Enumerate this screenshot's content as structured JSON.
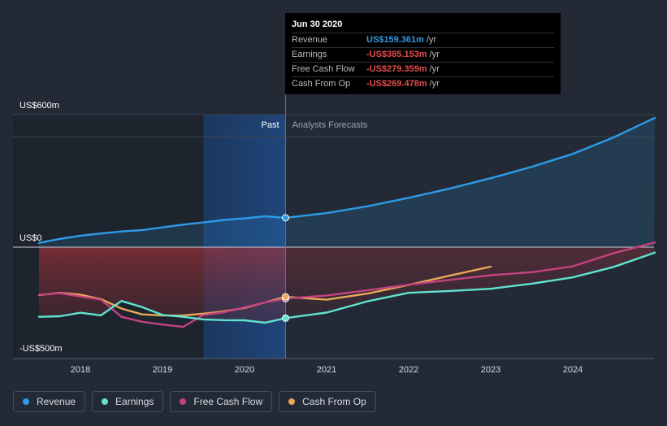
{
  "tooltip": {
    "date": "Jun 30 2020",
    "rows": [
      {
        "label": "Revenue",
        "value": "US$159.361m",
        "unit": "/yr",
        "color": "#2d9be8"
      },
      {
        "label": "Earnings",
        "value": "-US$385.153m",
        "unit": "/yr",
        "color": "#e64c4c"
      },
      {
        "label": "Free Cash Flow",
        "value": "-US$279.359m",
        "unit": "/yr",
        "color": "#e64c4c"
      },
      {
        "label": "Cash From Op",
        "value": "-US$269.478m",
        "unit": "/yr",
        "color": "#e64c4c"
      }
    ]
  },
  "legend": [
    {
      "label": "Revenue",
      "color": "#2d9be8"
    },
    {
      "label": "Earnings",
      "color": "#5fe3cf"
    },
    {
      "label": "Free Cash Flow",
      "color": "#c4427f"
    },
    {
      "label": "Cash From Op",
      "color": "#e8a857"
    }
  ],
  "chart_data": {
    "type": "line",
    "y_ticks": [
      {
        "label": "US$600m",
        "value": 600
      },
      {
        "label": "US$0",
        "value": 0
      },
      {
        "label": "-US$500m",
        "value": -500
      }
    ],
    "ylim": [
      -600,
      700
    ],
    "xlim": [
      2017.48,
      2025.0
    ],
    "x_ticks": [
      {
        "label": "2018",
        "value": 2018
      },
      {
        "label": "2019",
        "value": 2019
      },
      {
        "label": "2020",
        "value": 2020
      },
      {
        "label": "2021",
        "value": 2021
      },
      {
        "label": "2022",
        "value": 2022
      },
      {
        "label": "2023",
        "value": 2023
      },
      {
        "label": "2024",
        "value": 2024
      }
    ],
    "past_label": "Past",
    "forecast_label": "Analysts Forecasts",
    "past_end": 2020.5,
    "highlight_start": 2019.5,
    "series": [
      {
        "name": "Revenue",
        "color": "#2d9be8",
        "x": [
          2017.48,
          2017.75,
          2018.0,
          2018.25,
          2018.5,
          2018.75,
          2019.0,
          2019.25,
          2019.5,
          2019.75,
          2020.0,
          2020.25,
          2020.5,
          2021.0,
          2021.5,
          2022.0,
          2022.5,
          2023.0,
          2023.5,
          2024.0,
          2024.5,
          2025.0
        ],
        "y": [
          23,
          45,
          62,
          74,
          85,
          92,
          107,
          122,
          134,
          148,
          156,
          167,
          159.361,
          185,
          222,
          268,
          318,
          374,
          436,
          506,
          596,
          702
        ]
      },
      {
        "name": "Earnings",
        "color": "#5fe3cf",
        "x": [
          2017.48,
          2017.75,
          2018.0,
          2018.25,
          2018.5,
          2018.75,
          2019.0,
          2019.25,
          2019.5,
          2019.75,
          2020.0,
          2020.25,
          2020.5,
          2021.0,
          2021.5,
          2022.0,
          2022.5,
          2023.0,
          2023.5,
          2024.0,
          2024.5,
          2025.0
        ],
        "y": [
          -378,
          -375,
          -356,
          -370,
          -292,
          -325,
          -368,
          -378,
          -392,
          -396,
          -397,
          -410,
          -385.153,
          -355,
          -294,
          -248,
          -238,
          -226,
          -198,
          -164,
          -107,
          -30
        ]
      },
      {
        "name": "Free Cash Flow",
        "color": "#c4427f",
        "x": [
          2017.48,
          2017.75,
          2018.0,
          2018.25,
          2018.5,
          2018.75,
          2019.0,
          2019.25,
          2019.5,
          2019.75,
          2020.0,
          2020.25,
          2020.5,
          2021.0,
          2021.5,
          2022.0,
          2022.5,
          2023.0,
          2023.5,
          2024.0,
          2024.5,
          2025.0
        ],
        "y": [
          -258,
          -250,
          -268,
          -285,
          -378,
          -405,
          -420,
          -433,
          -368,
          -353,
          -327,
          -300,
          -279.359,
          -262,
          -234,
          -204,
          -178,
          -152,
          -136,
          -104,
          -32,
          25
        ]
      },
      {
        "name": "Cash From Op",
        "color": "#e8a857",
        "x": [
          2017.48,
          2017.75,
          2018.0,
          2018.25,
          2018.5,
          2018.75,
          2019.0,
          2019.25,
          2019.5,
          2019.75,
          2020.0,
          2020.25,
          2020.5,
          2021.0,
          2021.5,
          2022.0,
          2022.5,
          2023.0
        ],
        "y": [
          -260,
          -248,
          -258,
          -282,
          -333,
          -365,
          -371,
          -370,
          -361,
          -348,
          -330,
          -300,
          -269.478,
          -285,
          -252,
          -205,
          -155,
          -106
        ]
      }
    ]
  }
}
